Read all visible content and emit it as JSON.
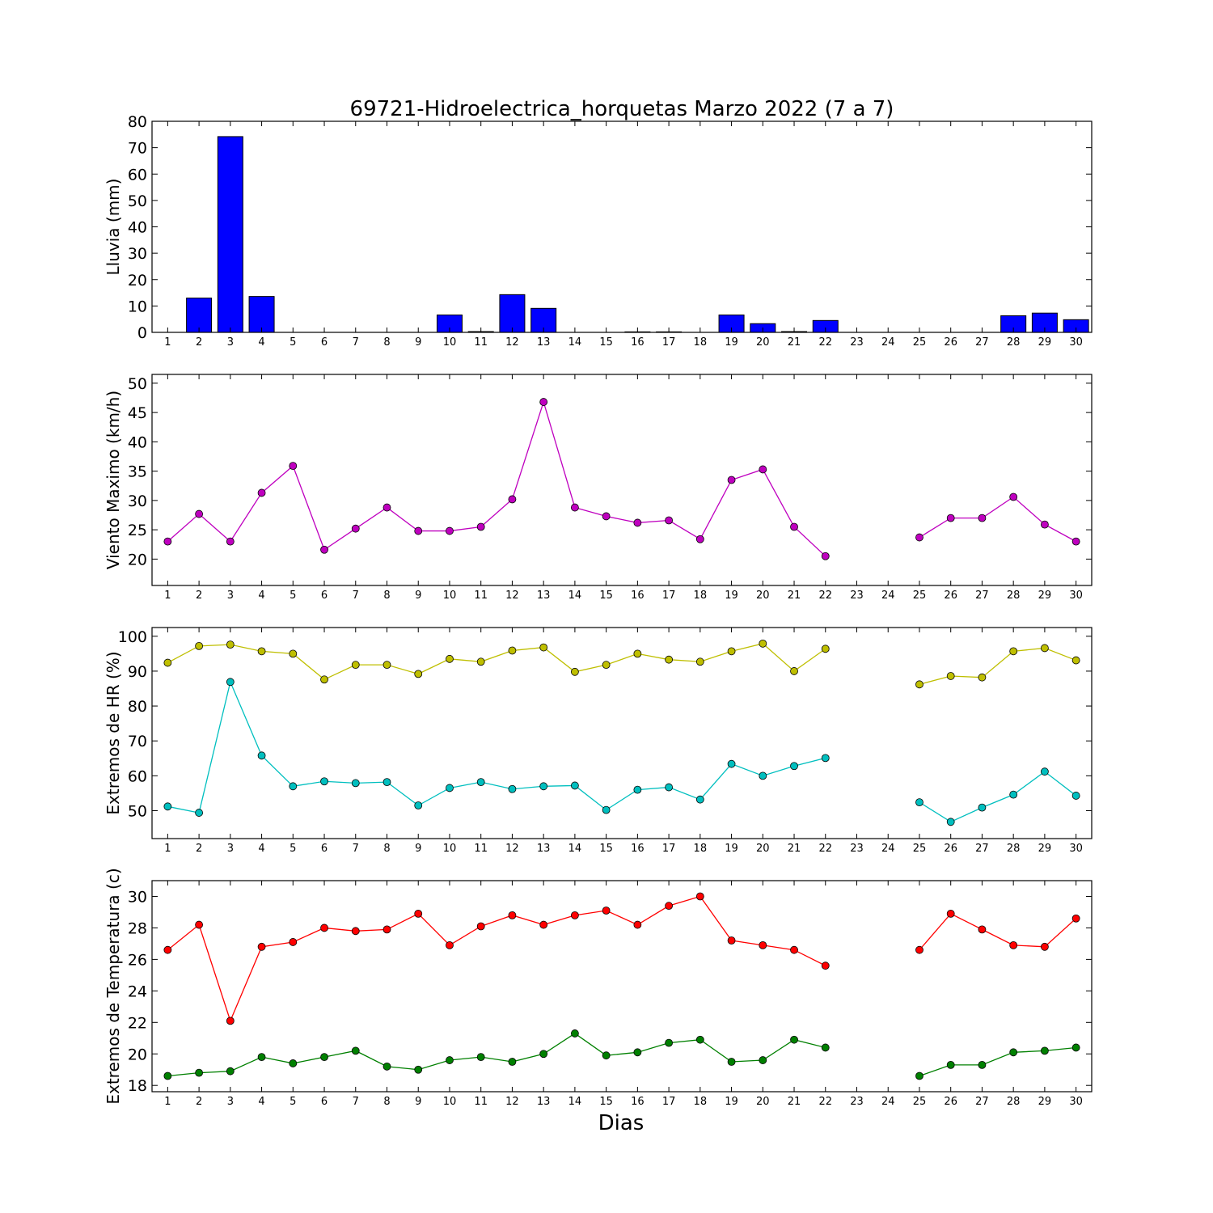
{
  "title": "69721-Hidroelectrica_horquetas Marzo 2022  (7 a 7)",
  "xlabel": "Dias",
  "chart_data": [
    {
      "type": "bar",
      "ylabel": "Lluvia (mm)",
      "ylim": [
        0,
        80
      ],
      "yticks": [
        0,
        10,
        20,
        30,
        40,
        50,
        60,
        70,
        80
      ],
      "x": [
        1,
        2,
        3,
        4,
        5,
        6,
        7,
        8,
        9,
        10,
        11,
        12,
        13,
        14,
        15,
        16,
        17,
        18,
        19,
        20,
        21,
        22,
        23,
        24,
        25,
        26,
        27,
        28,
        29,
        30
      ],
      "series": [
        {
          "color": "#0000ff",
          "values": [
            0,
            13,
            74.2,
            13.6,
            0,
            0,
            0,
            0,
            0,
            6.6,
            0.3,
            14.3,
            9.1,
            0,
            0,
            0.2,
            0.2,
            0,
            6.6,
            3.3,
            0.3,
            4.5,
            0,
            0,
            0,
            0,
            0,
            6.3,
            7.3,
            4.8
          ]
        }
      ]
    },
    {
      "type": "line",
      "ylabel": "Viento Maximo (km/h)",
      "ylim": [
        15.5,
        51.5
      ],
      "yticks": [
        20,
        25,
        30,
        35,
        40,
        45,
        50
      ],
      "x": [
        1,
        2,
        3,
        4,
        5,
        6,
        7,
        8,
        9,
        10,
        11,
        12,
        13,
        14,
        15,
        16,
        17,
        18,
        19,
        20,
        21,
        22,
        23,
        24,
        25,
        26,
        27,
        28,
        29,
        30
      ],
      "series": [
        {
          "color": "#bf00bf",
          "values": [
            23,
            27.7,
            23,
            31.3,
            35.9,
            21.6,
            25.2,
            28.8,
            24.8,
            24.8,
            25.5,
            30.2,
            46.8,
            28.8,
            27.3,
            26.2,
            26.6,
            23.4,
            33.5,
            35.3,
            25.5,
            20.5,
            null,
            null,
            23.7,
            27,
            27,
            30.6,
            25.9,
            23
          ]
        }
      ]
    },
    {
      "type": "line",
      "ylabel": "Extremos de HR (%)",
      "ylim": [
        42,
        102.5
      ],
      "yticks": [
        50,
        60,
        70,
        80,
        90,
        100
      ],
      "x": [
        1,
        2,
        3,
        4,
        5,
        6,
        7,
        8,
        9,
        10,
        11,
        12,
        13,
        14,
        15,
        16,
        17,
        18,
        19,
        20,
        21,
        22,
        23,
        24,
        25,
        26,
        27,
        28,
        29,
        30
      ],
      "series": [
        {
          "color": "#bfbf00",
          "values": [
            92.4,
            97.2,
            97.6,
            95.7,
            95,
            87.6,
            91.8,
            91.8,
            89.2,
            93.5,
            92.7,
            95.9,
            96.8,
            89.8,
            91.8,
            95,
            93.3,
            92.7,
            95.7,
            97.9,
            90,
            96.4,
            null,
            null,
            86.2,
            88.6,
            88.2,
            95.7,
            96.6,
            93.1
          ]
        },
        {
          "color": "#00bfbf",
          "values": [
            51.2,
            49.4,
            86.9,
            65.8,
            57,
            58.4,
            57.9,
            58.2,
            51.5,
            56.5,
            58.2,
            56.2,
            57,
            57.2,
            50.2,
            56,
            56.7,
            53.2,
            63.4,
            60,
            62.8,
            65.1,
            null,
            null,
            52.4,
            46.8,
            50.9,
            54.6,
            61.2,
            54.3
          ]
        }
      ]
    },
    {
      "type": "line",
      "ylabel": "Extremos de Temperatura (c)",
      "ylim": [
        17.6,
        31
      ],
      "yticks": [
        18,
        20,
        22,
        24,
        26,
        28,
        30
      ],
      "x": [
        1,
        2,
        3,
        4,
        5,
        6,
        7,
        8,
        9,
        10,
        11,
        12,
        13,
        14,
        15,
        16,
        17,
        18,
        19,
        20,
        21,
        22,
        23,
        24,
        25,
        26,
        27,
        28,
        29,
        30
      ],
      "series": [
        {
          "color": "#ff0000",
          "values": [
            26.6,
            28.2,
            22.1,
            26.8,
            27.1,
            28,
            27.8,
            27.9,
            28.9,
            26.9,
            28.1,
            28.8,
            28.2,
            28.8,
            29.1,
            28.2,
            29.4,
            30,
            27.2,
            26.9,
            26.6,
            25.6,
            null,
            null,
            26.6,
            28.9,
            27.9,
            26.9,
            26.8,
            28.6
          ]
        },
        {
          "color": "#008000",
          "values": [
            18.6,
            18.8,
            18.9,
            19.8,
            19.4,
            19.8,
            20.2,
            19.2,
            19,
            19.6,
            19.8,
            19.5,
            20,
            21.3,
            19.9,
            20.1,
            20.7,
            20.9,
            19.5,
            19.6,
            20.9,
            20.4,
            null,
            null,
            18.6,
            19.3,
            19.3,
            20.1,
            20.2,
            20.4
          ]
        }
      ]
    }
  ]
}
